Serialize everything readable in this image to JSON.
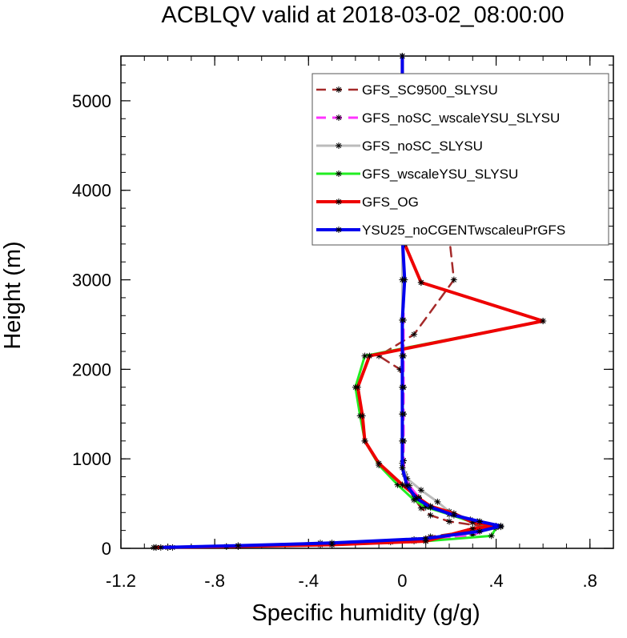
{
  "chart_data": {
    "type": "line",
    "title": "ACBLQV valid at 2018-03-02_08:00:00",
    "xlabel": "Specific humidity (g/g)",
    "ylabel": "Height (m)",
    "xlim": [
      -1.2,
      0.9
    ],
    "ylim": [
      0,
      5500
    ],
    "xticks": [
      -1.2,
      -0.8,
      -0.4,
      0,
      0.4,
      0.8
    ],
    "xtick_labels": [
      "-1.2",
      "-.8",
      "-.4",
      "0",
      ".4",
      ".8"
    ],
    "yticks": [
      0,
      1000,
      2000,
      3000,
      4000,
      5000
    ],
    "ytick_labels": [
      "0",
      "1000",
      "2000",
      "3000",
      "4000",
      "5000"
    ],
    "legend_position": "top-right",
    "marker": "asterisk",
    "series": [
      {
        "name": "GFS_SC9500_SLYSU",
        "color": "#a52a2a",
        "dash": "dashed",
        "points": [
          [
            -1.06,
            10
          ],
          [
            -0.98,
            10
          ],
          [
            -0.7,
            20
          ],
          [
            -0.35,
            40
          ],
          [
            -0.05,
            70
          ],
          [
            0.12,
            130
          ],
          [
            0.28,
            190
          ],
          [
            0.36,
            240
          ],
          [
            0.2,
            300
          ],
          [
            0.12,
            370
          ],
          [
            0.08,
            450
          ],
          [
            0.05,
            560
          ],
          [
            0.02,
            700
          ],
          [
            0.01,
            830
          ],
          [
            0.005,
            980
          ],
          [
            0.005,
            1200
          ],
          [
            0.005,
            1500
          ],
          [
            0.005,
            1800
          ],
          [
            -0.01,
            2000
          ],
          [
            -0.1,
            2150
          ],
          [
            0.05,
            2390
          ],
          [
            0.22,
            3000
          ],
          [
            0.2,
            3480
          ],
          [
            0.02,
            4070
          ],
          [
            0.01,
            4650
          ],
          [
            0.0,
            5200
          ],
          [
            0.0,
            5500
          ]
        ]
      },
      {
        "name": "GFS_noSC_wscaleYSU_SLYSU",
        "color": "#ff33ff",
        "dash": "dashed",
        "points": [
          [
            -1.0,
            10
          ],
          [
            -0.7,
            20
          ],
          [
            -0.35,
            40
          ],
          [
            0.05,
            80
          ],
          [
            0.3,
            150
          ],
          [
            0.4,
            240
          ],
          [
            0.32,
            300
          ],
          [
            0.2,
            380
          ],
          [
            0.12,
            460
          ],
          [
            0.07,
            570
          ],
          [
            0.03,
            700
          ],
          [
            0.01,
            830
          ],
          [
            0.005,
            980
          ],
          [
            0.005,
            1200
          ],
          [
            0.005,
            1500
          ],
          [
            0.005,
            1800
          ],
          [
            0.005,
            2150
          ],
          [
            0.005,
            2550
          ],
          [
            0.005,
            3000
          ],
          [
            0.0,
            3480
          ],
          [
            0.0,
            4070
          ],
          [
            0.0,
            4650
          ],
          [
            0.0,
            5200
          ],
          [
            0.0,
            5500
          ]
        ]
      },
      {
        "name": "GFS_noSC_SLYSU",
        "color": "#bbbbbb",
        "dash": "solid",
        "points": [
          [
            -1.0,
            10
          ],
          [
            -0.7,
            30
          ],
          [
            -0.35,
            60
          ],
          [
            0.05,
            100
          ],
          [
            0.3,
            170
          ],
          [
            0.42,
            240
          ],
          [
            0.29,
            320
          ],
          [
            0.2,
            410
          ],
          [
            0.15,
            520
          ],
          [
            0.08,
            650
          ],
          [
            0.02,
            780
          ],
          [
            0.0,
            950
          ],
          [
            0.0,
            1200
          ],
          [
            0.0,
            1500
          ],
          [
            0.0,
            1800
          ],
          [
            0.0,
            2150
          ],
          [
            0.0,
            2550
          ],
          [
            0.0,
            3000
          ],
          [
            0.0,
            3480
          ],
          [
            0.0,
            4070
          ],
          [
            0.0,
            4650
          ],
          [
            0.0,
            5200
          ],
          [
            0.0,
            5500
          ]
        ]
      },
      {
        "name": "GFS_wscaleYSU_SLYSU",
        "color": "#22ee22",
        "dash": "solid",
        "points": [
          [
            -1.05,
            10
          ],
          [
            -0.75,
            20
          ],
          [
            -0.3,
            40
          ],
          [
            0.1,
            80
          ],
          [
            0.38,
            140
          ],
          [
            0.4,
            230
          ],
          [
            0.3,
            290
          ],
          [
            0.2,
            380
          ],
          [
            0.1,
            460
          ],
          [
            0.05,
            540
          ],
          [
            -0.02,
            710
          ],
          [
            -0.1,
            930
          ],
          [
            -0.16,
            1200
          ],
          [
            -0.18,
            1480
          ],
          [
            -0.2,
            1800
          ],
          [
            -0.16,
            2150
          ],
          [
            0.6,
            2540
          ],
          [
            0.08,
            2970
          ],
          [
            0.01,
            3400
          ],
          [
            0.0,
            4070
          ],
          [
            0.0,
            4650
          ],
          [
            0.0,
            5200
          ],
          [
            0.0,
            5500
          ]
        ]
      },
      {
        "name": "GFS_OG",
        "color": "#ee0000",
        "dash": "solid",
        "points": [
          [
            -1.05,
            10
          ],
          [
            -0.75,
            20
          ],
          [
            -0.3,
            40
          ],
          [
            0.1,
            80
          ],
          [
            0.3,
            220
          ],
          [
            0.4,
            250
          ],
          [
            0.3,
            290
          ],
          [
            0.22,
            390
          ],
          [
            0.12,
            470
          ],
          [
            0.07,
            560
          ],
          [
            0.0,
            710
          ],
          [
            -0.1,
            950
          ],
          [
            -0.16,
            1200
          ],
          [
            -0.17,
            1480
          ],
          [
            -0.19,
            1800
          ],
          [
            -0.14,
            2150
          ],
          [
            0.6,
            2540
          ],
          [
            0.08,
            2970
          ],
          [
            0.01,
            3400
          ],
          [
            0.0,
            4070
          ],
          [
            0.0,
            4650
          ],
          [
            0.0,
            5200
          ],
          [
            0.0,
            5500
          ]
        ]
      },
      {
        "name": "YSU25_noCGENTwscaleuPrGFS",
        "color": "#0000ee",
        "dash": "solid",
        "points": [
          [
            -1.03,
            10
          ],
          [
            -0.7,
            30
          ],
          [
            -0.3,
            60
          ],
          [
            0.1,
            110
          ],
          [
            0.33,
            190
          ],
          [
            0.42,
            250
          ],
          [
            0.33,
            300
          ],
          [
            0.22,
            370
          ],
          [
            0.12,
            460
          ],
          [
            0.06,
            560
          ],
          [
            0.02,
            700
          ],
          [
            0.0,
            900
          ],
          [
            0.0,
            1200
          ],
          [
            0.0,
            1500
          ],
          [
            0.0,
            1800
          ],
          [
            0.0,
            2150
          ],
          [
            0.0,
            2550
          ],
          [
            0.01,
            3000
          ],
          [
            0.0,
            3480
          ],
          [
            0.0,
            4070
          ],
          [
            0.0,
            4650
          ],
          [
            0.0,
            5200
          ],
          [
            0.0,
            5500
          ]
        ]
      }
    ]
  }
}
